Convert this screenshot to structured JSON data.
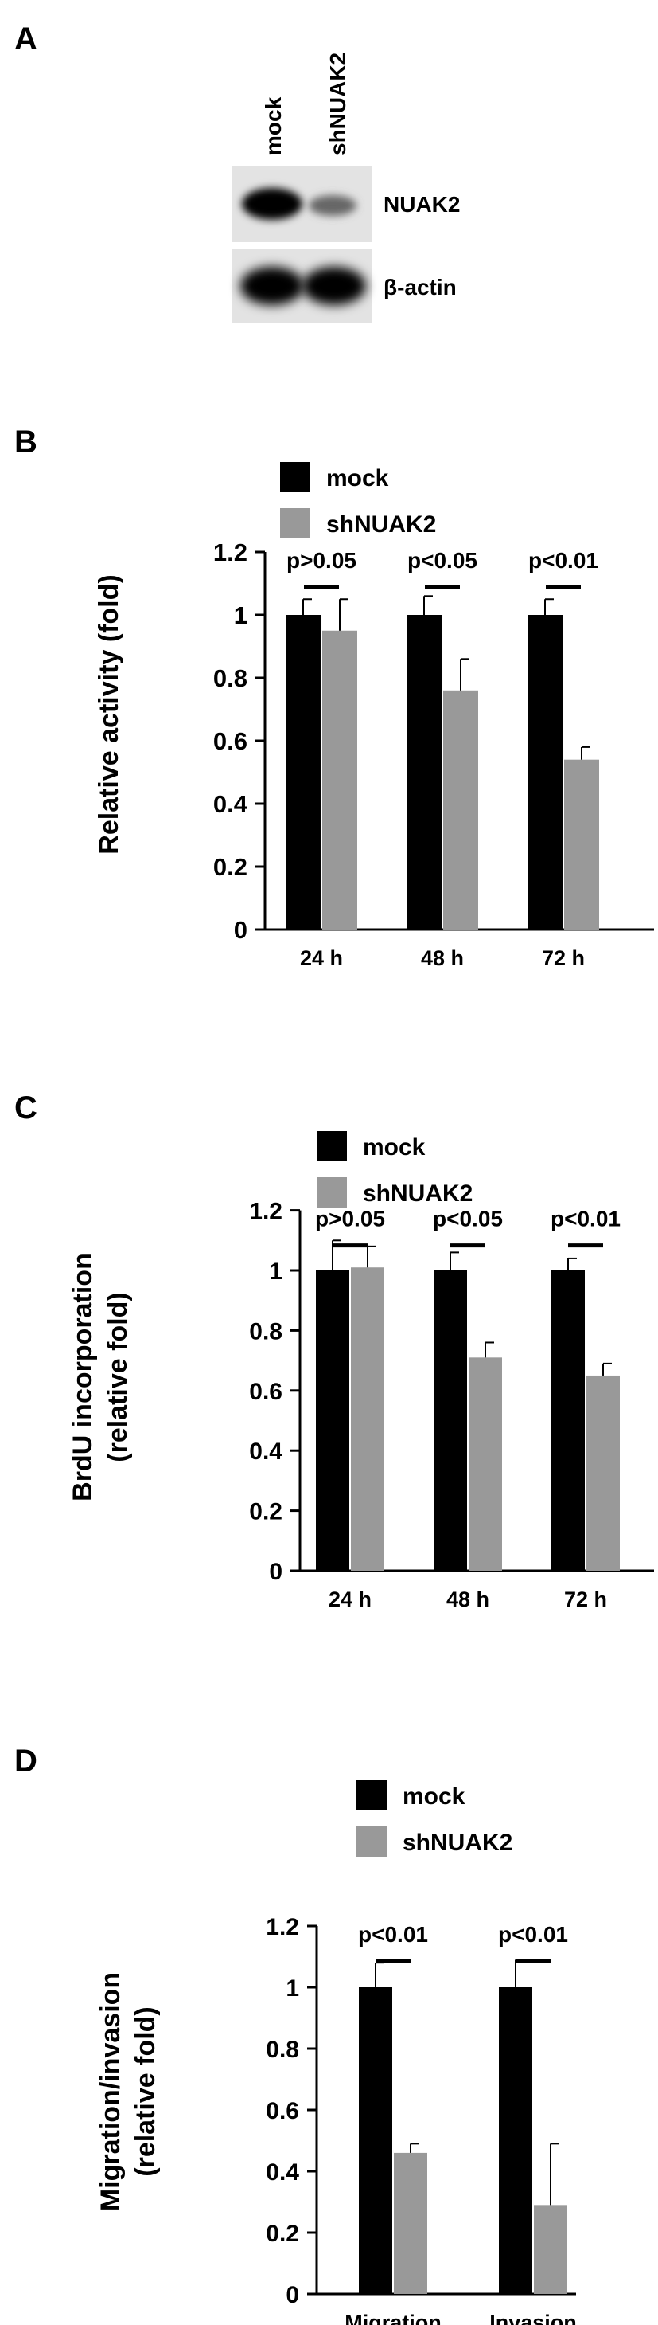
{
  "panels": {
    "A": {
      "letter": "A",
      "lane_labels": [
        "mock",
        "shNUAK2"
      ],
      "blot_labels": [
        "NUAK2",
        "β-actin"
      ]
    },
    "B": {
      "letter": "B"
    },
    "C": {
      "letter": "C"
    },
    "D": {
      "letter": "D"
    }
  },
  "colors": {
    "mock": "#000000",
    "shNUAK2": "#999999",
    "axis": "#000000"
  },
  "chart_data": [
    {
      "panel": "B",
      "type": "bar",
      "categories": [
        "24 h",
        "48 h",
        "72 h"
      ],
      "series": [
        {
          "name": "mock",
          "values": [
            1.0,
            1.0,
            1.0
          ],
          "errors": [
            0.05,
            0.06,
            0.05
          ]
        },
        {
          "name": "shNUAK2",
          "values": [
            0.95,
            0.76,
            0.54
          ],
          "errors": [
            0.1,
            0.1,
            0.04
          ]
        }
      ],
      "significance": [
        "p>0.05",
        "p<0.05",
        "p<0.01"
      ],
      "ylabel": "Relative activity (fold)",
      "ylabel_lines": [
        "Relative activity (fold)"
      ],
      "ylim": [
        0,
        1.2
      ],
      "yticks": [
        "0",
        "0.2",
        "0.4",
        "0.6",
        "0.8",
        "1",
        "1.2"
      ],
      "legend": "top"
    },
    {
      "panel": "C",
      "type": "bar",
      "categories": [
        "24 h",
        "48 h",
        "72 h"
      ],
      "series": [
        {
          "name": "mock",
          "values": [
            1.0,
            1.0,
            1.0
          ],
          "errors": [
            0.1,
            0.06,
            0.04
          ]
        },
        {
          "name": "shNUAK2",
          "values": [
            1.01,
            0.71,
            0.65
          ],
          "errors": [
            0.07,
            0.05,
            0.04
          ]
        }
      ],
      "significance": [
        "p>0.05",
        "p<0.05",
        "p<0.01"
      ],
      "ylabel": "BrdU incorporation (relative fold)",
      "ylabel_lines": [
        "BrdU incorporation",
        "(relative fold)"
      ],
      "ylim": [
        0,
        1.2
      ],
      "yticks": [
        "0",
        "0.2",
        "0.4",
        "0.6",
        "0.8",
        "1",
        "1.2"
      ],
      "legend": "top"
    },
    {
      "panel": "D",
      "type": "bar",
      "categories": [
        "Migration",
        "Invasion"
      ],
      "series": [
        {
          "name": "mock",
          "values": [
            1.0,
            1.0
          ],
          "errors": [
            0.08,
            0.09
          ]
        },
        {
          "name": "shNUAK2",
          "values": [
            0.46,
            0.29
          ],
          "errors": [
            0.03,
            0.2
          ]
        }
      ],
      "significance": [
        "p<0.01",
        "p<0.01"
      ],
      "ylabel": "Migration/invasion (relative fold)",
      "ylabel_lines": [
        "Migration/invasion",
        "(relative fold)"
      ],
      "ylim": [
        0,
        1.2
      ],
      "yticks": [
        "0",
        "0.2",
        "0.4",
        "0.6",
        "0.8",
        "1",
        "1.2"
      ],
      "legend": "top"
    }
  ]
}
